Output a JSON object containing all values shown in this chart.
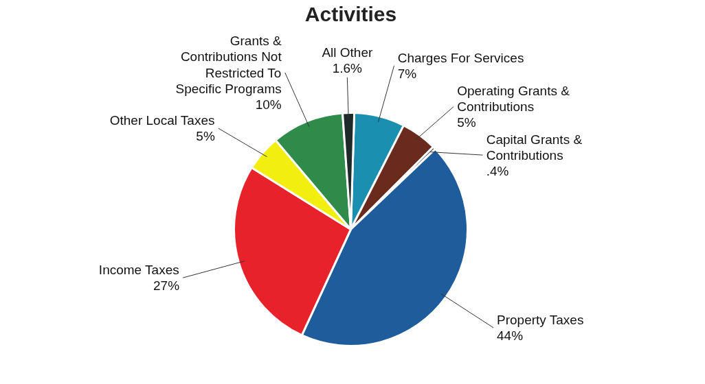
{
  "chart_data": {
    "type": "pie",
    "title": "Activities",
    "categories": [
      "Charges For Services",
      "Operating Grants & Contributions",
      "Capital Grants & Contributions",
      "Property Taxes",
      "Income Taxes",
      "Other Local Taxes",
      "Grants & Contributions Not Restricted To Specific Programs",
      "All Other"
    ],
    "values": [
      7,
      5,
      0.4,
      44,
      27,
      5,
      10,
      1.6
    ],
    "value_labels": [
      "7%",
      "5%",
      ".4%",
      "44%",
      "27%",
      "5%",
      "10%",
      "1.6%"
    ],
    "colors": [
      "#1a8fb0",
      "#6b2a1e",
      "#2a2a2a",
      "#1f5c9c",
      "#e8222a",
      "#f2ee10",
      "#2e8b4a",
      "#1e2a2a"
    ]
  }
}
